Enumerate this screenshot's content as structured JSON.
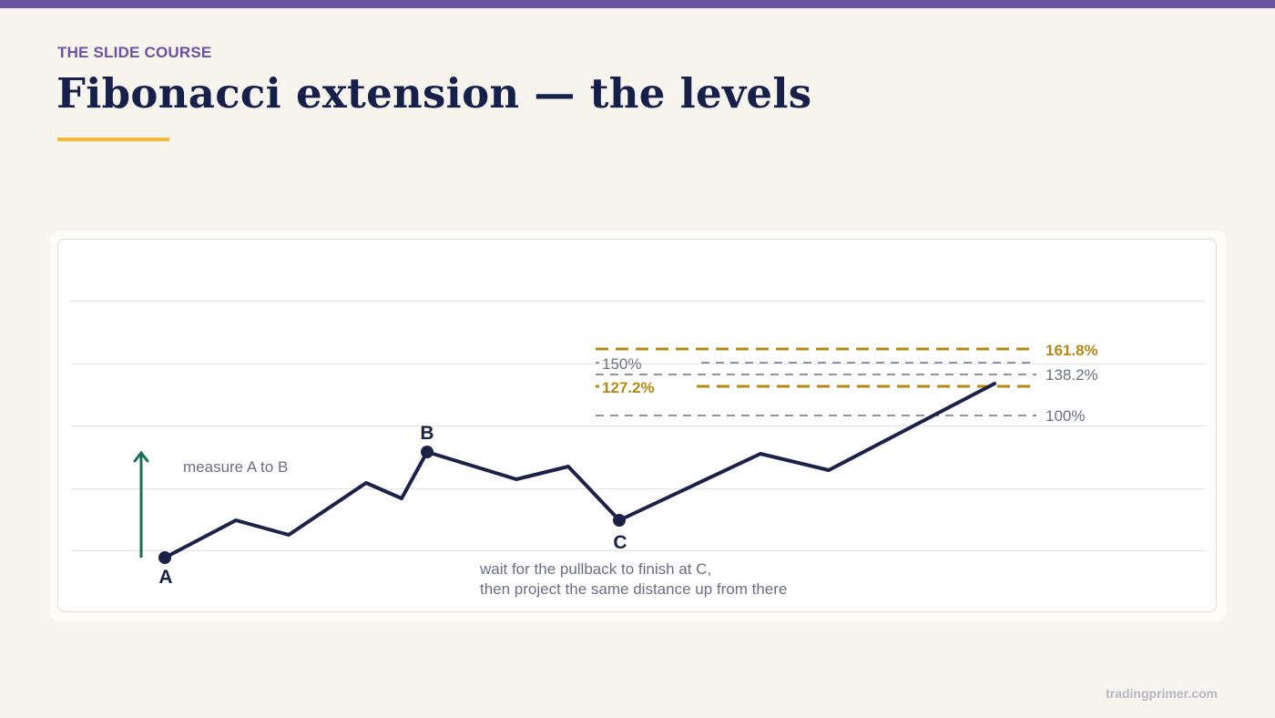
{
  "slide": {
    "eyebrow": "THE SLIDE COURSE",
    "title": "Fibonacci extension — the levels",
    "footer": "tradingprimer.com"
  },
  "colors": {
    "top_bar": "#6b52a1",
    "title": "#16204a",
    "accent_underline": "#f2b934",
    "price_line": "#1b2147",
    "gold_level": "#b48914",
    "grey_level": "#6b6e80",
    "measure_arrow": "#1a6e55",
    "annotation_text": "#6b6e80"
  },
  "diagram": {
    "points": [
      {
        "label": "A"
      },
      {
        "label": "B"
      },
      {
        "label": "C"
      }
    ],
    "measure_label": "measure A to B",
    "caption_lines": [
      "wait for the pullback to finish at C,",
      "then project the same distance up from there"
    ],
    "levels": [
      {
        "label": "161.8%",
        "emphasis": true
      },
      {
        "label": "150%",
        "emphasis": false
      },
      {
        "label": "138.2%",
        "emphasis": false
      },
      {
        "label": "127.2%",
        "emphasis": true
      },
      {
        "label": "100%",
        "emphasis": false
      }
    ]
  }
}
